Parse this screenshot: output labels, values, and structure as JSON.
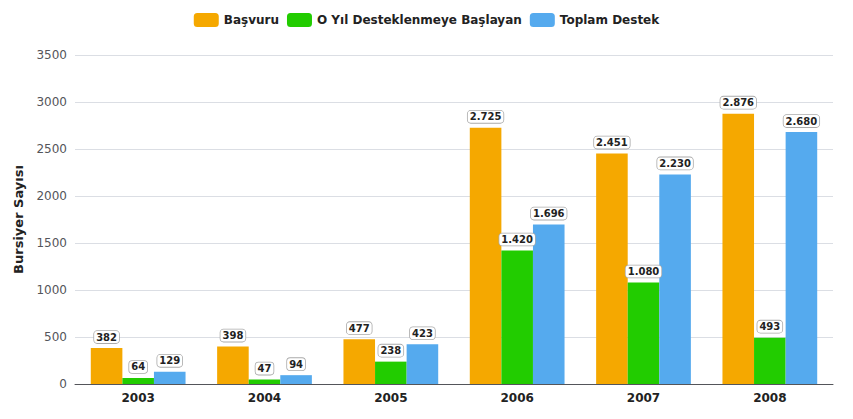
{
  "chart_data": {
    "type": "bar",
    "categories": [
      "2003",
      "2004",
      "2005",
      "2006",
      "2007",
      "2008"
    ],
    "series": [
      {
        "name": "Başvuru",
        "color": "#F5A800",
        "values": [
          382,
          398,
          477,
          2725,
          2451,
          2876
        ],
        "value_labels": [
          "382",
          "398",
          "477",
          "2.725",
          "2.451",
          "2.876"
        ]
      },
      {
        "name": "O Yıl Desteklenmeye Başlayan",
        "color": "#22CC00",
        "values": [
          64,
          47,
          238,
          1420,
          1080,
          493
        ],
        "value_labels": [
          "64",
          "47",
          "238",
          "1.420",
          "1.080",
          "493"
        ]
      },
      {
        "name": "Toplam Destek",
        "color": "#55AAEE",
        "values": [
          129,
          94,
          423,
          1696,
          2230,
          2680
        ],
        "value_labels": [
          "129",
          "94",
          "423",
          "1.696",
          "2.230",
          "2.680"
        ]
      }
    ],
    "ylabel": "Bursiyer Sayısı",
    "ylim": [
      0,
      3500
    ],
    "yticks": [
      0,
      500,
      1000,
      1500,
      2000,
      2500,
      3000,
      3500
    ],
    "grid": true,
    "legend": "top",
    "data_labels": true
  }
}
